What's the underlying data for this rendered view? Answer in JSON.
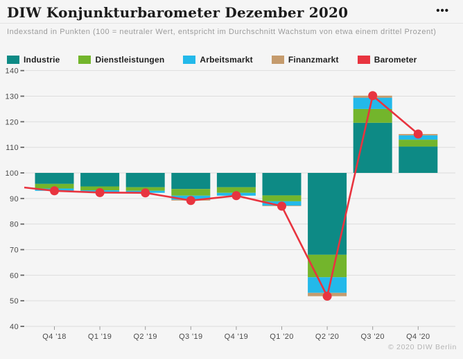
{
  "header": {
    "title": "DIW Konjunkturbarometer Dezember 2020",
    "menu_glyph": "•••"
  },
  "subtitle": "Indexstand in Punkten (100 = neutraler Wert, entspricht im Durchschnitt Wachstum von etwa einem drittel Prozent)",
  "footer": {
    "copyright": "© 2020 DIW Berlin"
  },
  "colors": {
    "background": "#f5f5f5",
    "grid": "#dcdcdc",
    "axis_text": "#4a4a4a",
    "industrie": "#0d8a85",
    "dienstleistungen": "#73b52c",
    "arbeitsmarkt": "#23b9ea",
    "finanzmarkt": "#c59b6d",
    "barometer": "#e8343f"
  },
  "chart_data": {
    "type": "bar",
    "stacked": true,
    "baseline": 100,
    "grid": true,
    "legend_position": "top",
    "categories": [
      "Q4 '18",
      "Q1 '19",
      "Q2 '19",
      "Q3 '19",
      "Q4 '19",
      "Q1 '20",
      "Q2 '20",
      "Q3 '20",
      "Q4 '20"
    ],
    "series": [
      {
        "name": "Industrie",
        "color": "#0d8a85",
        "values": [
          -4.3,
          -5.3,
          -5.6,
          -6.3,
          -5.6,
          -8.8,
          -32.0,
          19.6,
          10.3
        ]
      },
      {
        "name": "Dienstleistungen",
        "color": "#73b52c",
        "values": [
          -1.8,
          -1.5,
          -1.4,
          -2.6,
          -2.2,
          -2.3,
          -8.8,
          5.4,
          2.7
        ]
      },
      {
        "name": "Arbeitsmarkt",
        "color": "#23b9ea",
        "values": [
          -0.9,
          -0.9,
          -0.8,
          -1.6,
          -1.1,
          -1.7,
          -6.1,
          4.4,
          1.7
        ]
      },
      {
        "name": "Finanzmarkt",
        "color": "#c59b6d",
        "values": [
          0.0,
          0.0,
          0.0,
          -0.3,
          0.0,
          -0.2,
          -1.3,
          0.8,
          0.5
        ]
      }
    ],
    "line_series": {
      "name": "Barometer",
      "color": "#e8343f",
      "values": [
        93.0,
        92.3,
        92.2,
        89.2,
        91.1,
        87.0,
        51.8,
        130.2,
        115.2
      ],
      "edge_start_value": 94.3
    },
    "ylabel": "",
    "xlabel": "",
    "ylim": [
      40,
      140
    ],
    "yticks": [
      40,
      50,
      60,
      70,
      80,
      90,
      100,
      110,
      120,
      130,
      140
    ]
  }
}
